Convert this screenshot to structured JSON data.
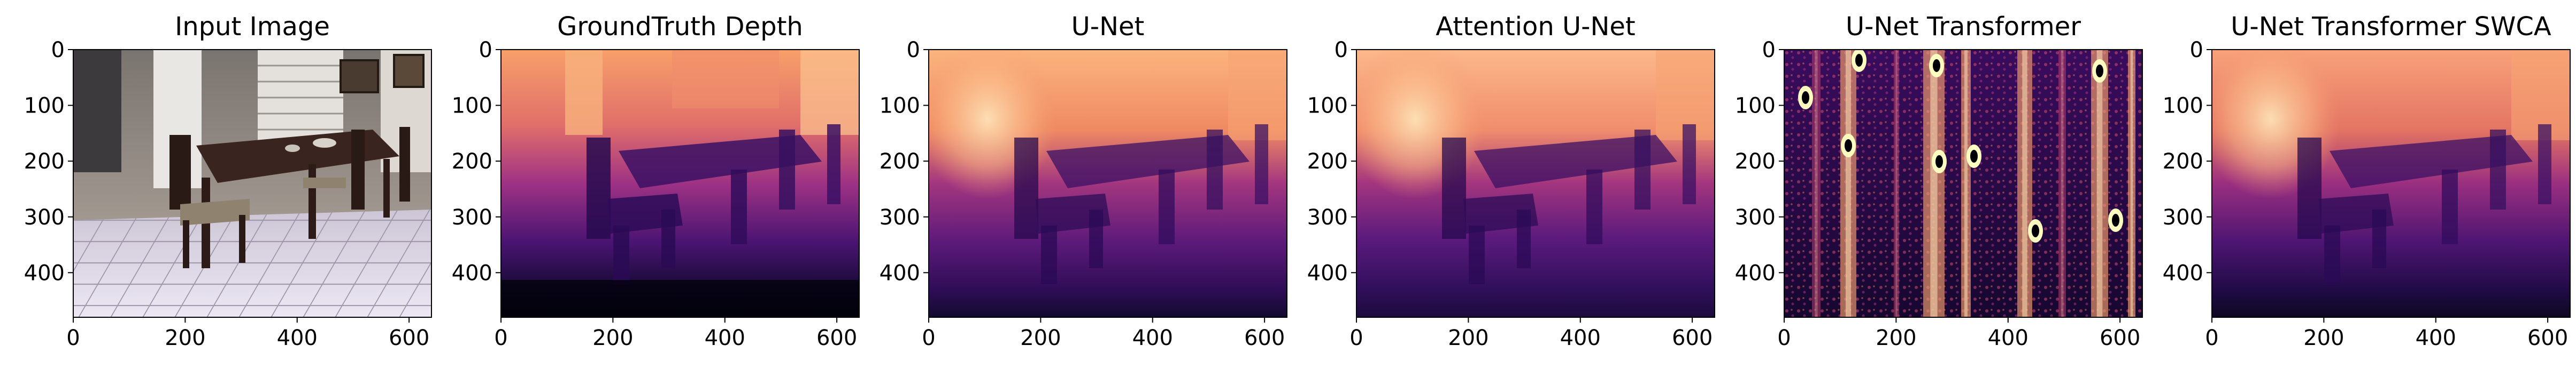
{
  "panels": [
    {
      "key": "input",
      "title": "Input Image",
      "x_ticks": [
        "0",
        "200",
        "400",
        "600"
      ],
      "y_ticks": [
        "0",
        "100",
        "200",
        "300",
        "400"
      ],
      "colormap": "rgb-photo",
      "content": "indoor dining room photo: dark wooden table with chairs, white cabinets with dishes, white tile floor"
    },
    {
      "key": "gt",
      "title": "GroundTruth Depth",
      "x_ticks": [
        "0",
        "200",
        "400",
        "600"
      ],
      "y_ticks": [
        "0",
        "100",
        "200",
        "300",
        "400"
      ],
      "colormap": "magma"
    },
    {
      "key": "unet",
      "title": "U-Net",
      "x_ticks": [
        "0",
        "200",
        "400",
        "600"
      ],
      "y_ticks": [
        "0",
        "100",
        "200",
        "300",
        "400"
      ],
      "colormap": "magma"
    },
    {
      "key": "att-unet",
      "title": "Attention U-Net",
      "x_ticks": [
        "0",
        "200",
        "400",
        "600"
      ],
      "y_ticks": [
        "0",
        "100",
        "200",
        "300",
        "400"
      ],
      "colormap": "magma"
    },
    {
      "key": "unet-transformer",
      "title": "U-Net Transformer",
      "x_ticks": [
        "0",
        "200",
        "400",
        "600"
      ],
      "y_ticks": [
        "0",
        "100",
        "200",
        "300",
        "400"
      ],
      "colormap": "magma"
    },
    {
      "key": "unet-transformer-swca",
      "title": "U-Net Transformer SWCA",
      "x_ticks": [
        "0",
        "200",
        "400",
        "600"
      ],
      "y_ticks": [
        "0",
        "100",
        "200",
        "300",
        "400"
      ],
      "colormap": "magma"
    }
  ],
  "axes": {
    "x_range": [
      0,
      640
    ],
    "y_range": [
      0,
      480
    ],
    "y_inverted": true
  },
  "colors": {
    "magma_bright": "#fcd0a0",
    "magma_orange": "#f98b5e",
    "magma_pink": "#c73d73",
    "magma_purple": "#7a2482",
    "magma_violet": "#3b0f70",
    "magma_dark": "#0c0826",
    "magma_black": "#000004"
  }
}
